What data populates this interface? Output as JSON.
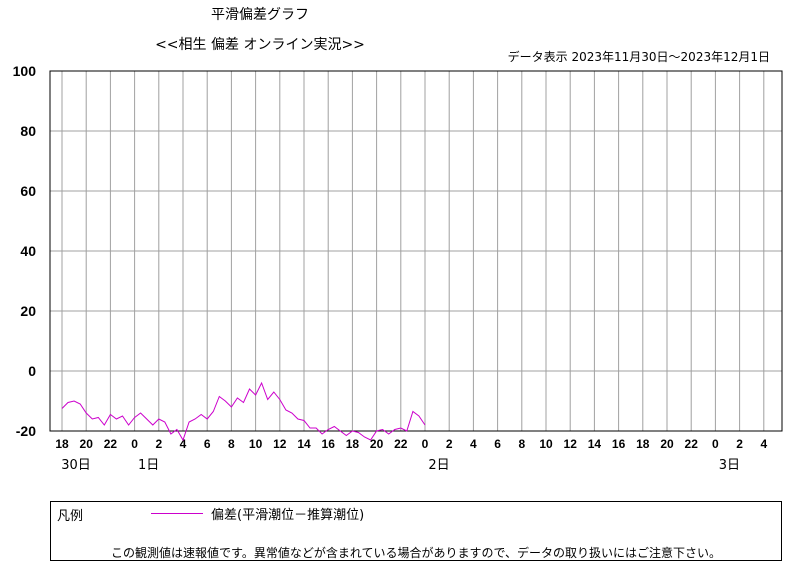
{
  "header": {
    "title": "平滑偏差グラフ",
    "subtitle": "<<相生 偏差 オンライン実況>>",
    "period": "データ表示 2023年11月30日～2023年12月1日"
  },
  "legend": {
    "title": "凡例",
    "series_label": "偏差(平滑潮位－推算潮位)",
    "notice": "この観測値は速報値です。異常値などが含まれている場合がありますので、データの取り扱いにはご注意下さい。"
  },
  "colors": {
    "series": "#cc00cc",
    "grid": "#a0a0a0",
    "axis": "#000000"
  },
  "chart_data": {
    "type": "line",
    "x_unit": "hours from 2023-11-30 18:00",
    "xlim": [
      0,
      58
    ],
    "ylim": [
      -20,
      100
    ],
    "y_ticks": [
      100,
      80,
      60,
      40,
      20,
      0,
      -20
    ],
    "x_tick_labels": [
      "18",
      "20",
      "22",
      "0",
      "2",
      "4",
      "6",
      "8",
      "10",
      "12",
      "14",
      "16",
      "18",
      "20",
      "22",
      "0",
      "2",
      "4",
      "6",
      "8",
      "10",
      "12",
      "14",
      "16",
      "18",
      "20",
      "22",
      "0",
      "2",
      "4"
    ],
    "day_labels": [
      {
        "x": 0,
        "label": "30日"
      },
      {
        "x": 6,
        "label": "1日"
      },
      {
        "x": 30,
        "label": "2日"
      },
      {
        "x": 54,
        "label": "3日"
      }
    ],
    "grid": true,
    "series": [
      {
        "color": "#cc00cc",
        "x": [
          0,
          0.5,
          1,
          1.5,
          2,
          2.5,
          3,
          3.5,
          4,
          4.5,
          5,
          5.5,
          6,
          6.5,
          7,
          7.5,
          8,
          8.5,
          9,
          9.5,
          10,
          10.5,
          11,
          11.5,
          12,
          12.5,
          13,
          13.5,
          14,
          14.5,
          15,
          15.5,
          16,
          16.5,
          17,
          17.5,
          18,
          18.5,
          19,
          19.5,
          20,
          20.5,
          21,
          21.5,
          22,
          22.5,
          23,
          23.5,
          24,
          24.5,
          25,
          25.5,
          26,
          26.5,
          27,
          27.5,
          28,
          28.5,
          29,
          29.5,
          30
        ],
        "values": [
          -12.5,
          -10.5,
          -10,
          -11,
          -14,
          -16,
          -15.5,
          -18,
          -14.5,
          -16,
          -15,
          -18,
          -15.5,
          -14,
          -16,
          -18,
          -16,
          -17,
          -21,
          -19.5,
          -23,
          -17,
          -16,
          -14.5,
          -16,
          -13.5,
          -8.5,
          -10,
          -12,
          -9,
          -10.5,
          -6,
          -8,
          -4,
          -9.5,
          -7,
          -9.5,
          -13,
          -14,
          -16,
          -16.5,
          -19,
          -19,
          -21,
          -19.5,
          -18.5,
          -20,
          -21.5,
          -20,
          -20.5,
          -22,
          -23,
          -20,
          -19.5,
          -21,
          -19.5,
          -19,
          -20,
          -13.5,
          -15,
          -18
        ]
      }
    ]
  }
}
